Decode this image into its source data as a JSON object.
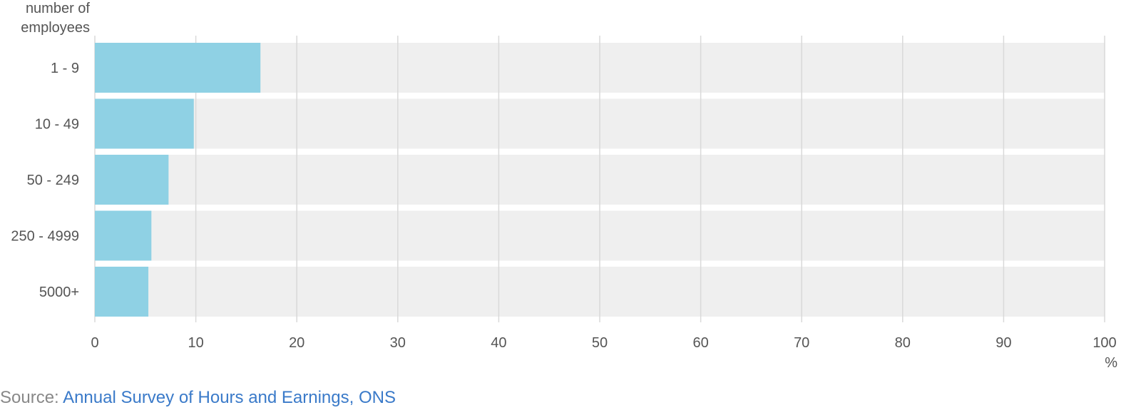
{
  "chart_data": {
    "type": "bar",
    "orientation": "horizontal",
    "title": "",
    "ylabel_lines": [
      "number of",
      "employees"
    ],
    "xlabel": "%",
    "categories": [
      "1 - 9",
      "10 - 49",
      "50 - 249",
      "250 - 4999",
      "5000+"
    ],
    "values": [
      16.4,
      9.8,
      7.3,
      5.6,
      5.3
    ],
    "xlim": [
      0,
      100
    ],
    "xticks": [
      "0",
      "10",
      "20",
      "30",
      "40",
      "50",
      "60",
      "70",
      "80",
      "90",
      "100"
    ],
    "grid": true,
    "legend": "none",
    "colors": {
      "bar": "#8fd1e4",
      "track": "#efefef",
      "grid": "#d9d9d9"
    }
  },
  "source": {
    "prefix": "Source: ",
    "link_text": "Annual Survey of Hours and Earnings, ONS"
  }
}
